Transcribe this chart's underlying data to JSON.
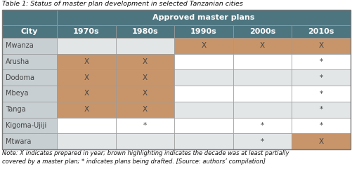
{
  "title": "Table 1: Status of master plan development in selected Tanzanian cities",
  "note": "Note: X indicates prepared in year; brown highlighting indicates the decade was at least partially\ncovered by a master plan; * indicates plans being drafted. [Source: authors’ compilation]",
  "header_main": "Approved master plans",
  "col_header": "City",
  "decades": [
    "1970s",
    "1980s",
    "1990s",
    "2000s",
    "2010s"
  ],
  "cities": [
    "Mwanza",
    "Arusha",
    "Dodoma",
    "Mbeya",
    "Tanga",
    "Kigoma-Ujiji",
    "Mtwara"
  ],
  "cells": [
    [
      "",
      "",
      "X",
      "X",
      "X"
    ],
    [
      "X",
      "X",
      "",
      "",
      "*"
    ],
    [
      "X",
      "X",
      "",
      "",
      "*"
    ],
    [
      "X",
      "X",
      "",
      "",
      "*"
    ],
    [
      "X",
      "X",
      "",
      "",
      "*"
    ],
    [
      "",
      "*",
      "",
      "*",
      "*"
    ],
    [
      "",
      "",
      "",
      "*",
      "X"
    ]
  ],
  "brown_cells": [
    [
      false,
      false,
      true,
      true,
      true
    ],
    [
      true,
      true,
      false,
      false,
      false
    ],
    [
      true,
      true,
      false,
      false,
      false
    ],
    [
      true,
      true,
      false,
      false,
      false
    ],
    [
      true,
      true,
      false,
      false,
      false
    ],
    [
      false,
      false,
      false,
      false,
      false
    ],
    [
      false,
      false,
      false,
      false,
      true
    ]
  ],
  "row_gray": [
    true,
    false,
    true,
    false,
    true,
    false,
    true
  ],
  "header_bg": "#4d7580",
  "brown_color": "#c8956b",
  "city_col_gray": "#c8cfd2",
  "light_gray_row": "#e2e6e7",
  "white": "#ffffff",
  "header_text_color": "#ffffff",
  "cell_text_color": "#444444",
  "title_color": "#111111",
  "note_color": "#111111",
  "border_color": "#999999",
  "figw": 5.01,
  "figh": 2.41,
  "dpi": 100
}
